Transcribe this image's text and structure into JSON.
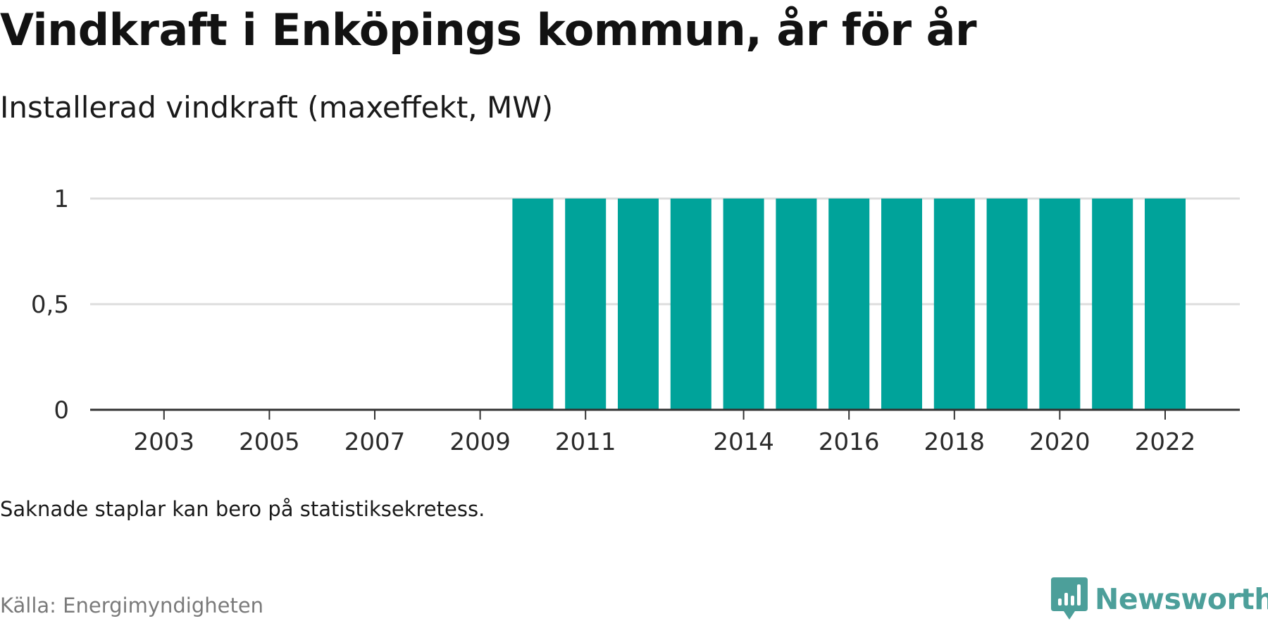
{
  "title": "Vindkraft i Enköpings kommun, år för år",
  "subtitle": "Installerad vindkraft (maxeffekt, MW)",
  "note": "Saknade staplar kan bero på statistiksekretess.",
  "source": "Källa: Energimyndigheten",
  "brand": {
    "name": "Newsworthy",
    "icon": "newsworthy-logo-icon",
    "color": "#4c9f9a"
  },
  "colors": {
    "bar": "#00a39a",
    "grid": "#dddddd",
    "axis": "#333333",
    "tick_text": "#2a2a2a"
  },
  "chart_data": {
    "type": "bar",
    "categories": [
      "2002",
      "2003",
      "2004",
      "2005",
      "2006",
      "2007",
      "2008",
      "2009",
      "2010",
      "2011",
      "2012",
      "2013",
      "2014",
      "2015",
      "2016",
      "2017",
      "2018",
      "2019",
      "2020",
      "2021",
      "2022"
    ],
    "values": [
      null,
      null,
      null,
      null,
      null,
      null,
      null,
      null,
      1,
      1,
      1,
      1,
      1,
      1,
      1,
      1,
      1,
      1,
      1,
      1,
      1
    ],
    "x_tick_labels": [
      "2003",
      "2005",
      "2007",
      "2009",
      "2011",
      "2014",
      "2016",
      "2018",
      "2020",
      "2022"
    ],
    "y_ticks": [
      0,
      0.5,
      1
    ],
    "y_tick_labels": [
      "0",
      "0,5",
      "1"
    ],
    "ylim": [
      0,
      1
    ],
    "title": "Vindkraft i Enköpings kommun, år för år",
    "subtitle": "Installerad vindkraft (maxeffekt, MW)",
    "xlabel": "",
    "ylabel": "",
    "grid": true,
    "legend": "none"
  }
}
